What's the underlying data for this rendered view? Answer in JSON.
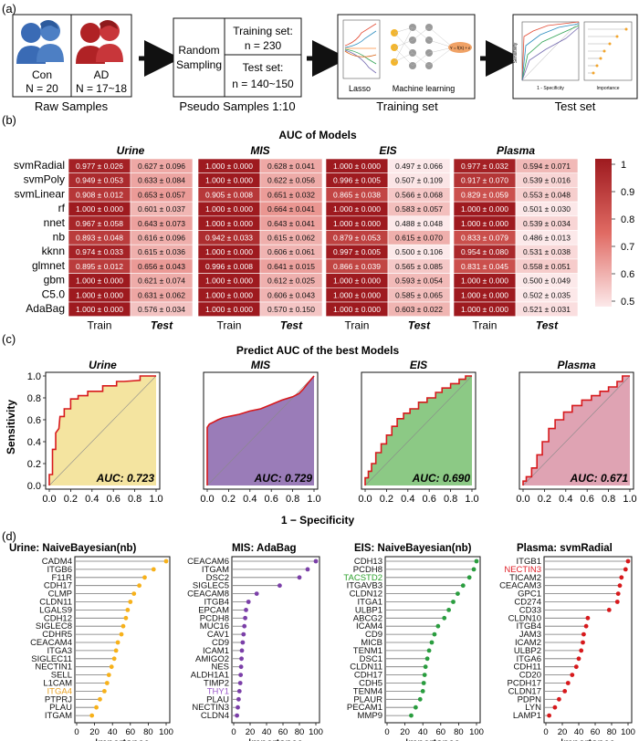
{
  "panels": {
    "a": "(a)",
    "b": "(b)",
    "c": "(c)",
    "d": "(d)"
  },
  "workflow": {
    "con_label": "Con",
    "con_n": "N = 20",
    "ad_label": "AD",
    "ad_n": "N = 17~18",
    "raw_caption": "Raw Samples",
    "random_line1": "Random",
    "random_line2": "Sampling",
    "train_line1": "Training set:",
    "train_line2": "n = 230",
    "test_line1": "Test set:",
    "test_line2": "n = 140~150",
    "pseudo_caption": "Pseudo Samples 1:10",
    "lasso_label": "Lasso",
    "ml_label": "Machine learning",
    "formula": "Y = f(X) + ε",
    "training_caption": "Training set",
    "test_caption": "Test set",
    "mini_plot_xlabel": "1 - Specificity",
    "mini_plot_ylabel": "Sensitivity",
    "mini_plot2_xlabel": "Importance"
  },
  "heatmap": {
    "title": "AUC of Models",
    "models": [
      "svmRadial",
      "svmPoly",
      "svmLinear",
      "rf",
      "nnet",
      "nb",
      "kknn",
      "glmnet",
      "gbm",
      "C5.0",
      "AdaBag"
    ],
    "col_train": "Train",
    "col_test": "Test",
    "legend_ticks": [
      "1",
      "0.9",
      "0.8",
      "0.7",
      "0.6",
      "0.5"
    ],
    "legend_colors": {
      "high": "#9e1a1f",
      "low": "#fce9ea"
    },
    "groups": [
      {
        "name": "Urine",
        "train": [
          "0.977 ± 0.026",
          "0.949 ± 0.053",
          "0.908 ± 0.012",
          "1.000 ± 0.000",
          "0.967 ± 0.058",
          "0.893 ± 0.048",
          "0.974 ± 0.033",
          "0.895 ± 0.012",
          "1.000 ± 0.000",
          "1.000 ± 0.000",
          "1.000 ± 0.000"
        ],
        "test": [
          "0.627 ± 0.096",
          "0.633 ± 0.084",
          "0.653 ± 0.057",
          "0.601 ± 0.037",
          "0.643 ± 0.073",
          "0.616 ± 0.096",
          "0.615 ± 0.036",
          "0.656 ± 0.043",
          "0.621 ± 0.074",
          "0.631 ± 0.062",
          "0.576 ± 0.034"
        ]
      },
      {
        "name": "MIS",
        "train": [
          "1.000 ± 0.000",
          "1.000 ± 0.000",
          "0.905 ± 0.008",
          "1.000 ± 0.000",
          "1.000 ± 0.000",
          "0.942 ± 0.033",
          "1.000 ± 0.000",
          "0.996 ± 0.008",
          "1.000 ± 0.000",
          "1.000 ± 0.000",
          "1.000 ± 0.000"
        ],
        "test": [
          "0.628 ± 0.041",
          "0.622 ± 0.056",
          "0.651 ± 0.032",
          "0.664 ± 0.041",
          "0.643 ± 0.041",
          "0.615 ± 0.062",
          "0.606 ± 0.061",
          "0.641 ± 0.015",
          "0.612 ± 0.025",
          "0.606 ± 0.043",
          "0.570 ± 0.150"
        ]
      },
      {
        "name": "EIS",
        "train": [
          "1.000 ± 0.000",
          "0.996 ± 0.005",
          "0.865 ± 0.038",
          "1.000 ± 0.000",
          "1.000 ± 0.000",
          "0.879 ± 0.053",
          "0.997 ± 0.005",
          "0.866 ± 0.039",
          "1.000 ± 0.000",
          "1.000 ± 0.000",
          "1.000 ± 0.000"
        ],
        "test": [
          "0.497 ± 0.066",
          "0.507 ± 0.109",
          "0.566 ± 0.068",
          "0.583 ± 0.057",
          "0.488 ± 0.048",
          "0.615 ± 0.070",
          "0.500 ± 0.106",
          "0.565 ± 0.085",
          "0.593 ± 0.054",
          "0.585 ± 0.065",
          "0.603 ± 0.022"
        ]
      },
      {
        "name": "Plasma",
        "train": [
          "0.977 ± 0.032",
          "0.917 ± 0.070",
          "0.829 ± 0.059",
          "1.000 ± 0.000",
          "1.000 ± 0.000",
          "0.833 ± 0.079",
          "0.954 ± 0.080",
          "0.831 ± 0.045",
          "1.000 ± 0.000",
          "1.000 ± 0.000",
          "1.000 ± 0.000"
        ],
        "test": [
          "0.594 ± 0.071",
          "0.539 ± 0.016",
          "0.553 ± 0.048",
          "0.501 ± 0.030",
          "0.539 ± 0.034",
          "0.486 ± 0.013",
          "0.531 ± 0.038",
          "0.558 ± 0.051",
          "0.500 ± 0.049",
          "0.502 ± 0.035",
          "0.521 ± 0.031"
        ]
      }
    ]
  },
  "roc": {
    "title": "Predict AUC of the best Models",
    "ylabel": "Sensitivity",
    "xlabel": "1 − Specificity",
    "ticks": [
      "0.0",
      "0.2",
      "0.4",
      "0.6",
      "0.8",
      "1.0"
    ],
    "line_color": "#d7191c",
    "plots": [
      {
        "name": "Urine",
        "auc": "AUC: 0.723",
        "fill": "#f4e4a0"
      },
      {
        "name": "MIS",
        "auc": "AUC: 0.729",
        "fill": "#9a7cb8"
      },
      {
        "name": "EIS",
        "auc": "AUC: 0.690",
        "fill": "#8cc985"
      },
      {
        "name": "Plasma",
        "auc": "AUC: 0.671",
        "fill": "#dfa3b3"
      }
    ]
  },
  "chart_data": [
    {
      "type": "line",
      "title": "Urine",
      "xlabel": "1 − Specificity",
      "ylabel": "Sensitivity",
      "xlim": [
        0,
        1
      ],
      "ylim": [
        0,
        1
      ],
      "annotation": "AUC: 0.723",
      "x": [
        0,
        0,
        0.03,
        0.03,
        0.06,
        0.06,
        0.09,
        0.1,
        0.14,
        0.14,
        0.2,
        0.2,
        0.27,
        0.27,
        0.36,
        0.36,
        0.5,
        0.5,
        0.63,
        0.63,
        0.7,
        0.85,
        0.85,
        1.0
      ],
      "y": [
        0,
        0.1,
        0.1,
        0.33,
        0.33,
        0.48,
        0.52,
        0.63,
        0.63,
        0.7,
        0.7,
        0.79,
        0.79,
        0.82,
        0.82,
        0.86,
        0.86,
        0.91,
        0.91,
        0.95,
        0.95,
        0.96,
        1.0,
        1.0
      ]
    },
    {
      "type": "line",
      "title": "MIS",
      "xlabel": "1 − Specificity",
      "ylabel": "Sensitivity",
      "xlim": [
        0,
        1
      ],
      "ylim": [
        0,
        1
      ],
      "annotation": "AUC: 0.729",
      "x": [
        0,
        0,
        0.02,
        0.06,
        0.1,
        0.15,
        0.2,
        0.3,
        0.4,
        0.5,
        0.6,
        0.7,
        0.8,
        0.86,
        0.9,
        0.94,
        1.0
      ],
      "y": [
        0,
        0.53,
        0.56,
        0.58,
        0.6,
        0.62,
        0.63,
        0.65,
        0.68,
        0.7,
        0.74,
        0.78,
        0.81,
        0.84,
        0.88,
        0.93,
        1.0
      ]
    },
    {
      "type": "line",
      "title": "EIS",
      "xlabel": "1 − Specificity",
      "ylabel": "Sensitivity",
      "xlim": [
        0,
        1
      ],
      "ylim": [
        0,
        1
      ],
      "annotation": "AUC: 0.690",
      "x": [
        0,
        0,
        0.03,
        0.03,
        0.06,
        0.06,
        0.1,
        0.1,
        0.15,
        0.15,
        0.2,
        0.2,
        0.25,
        0.25,
        0.3,
        0.3,
        0.36,
        0.36,
        0.42,
        0.42,
        0.5,
        0.5,
        0.58,
        0.58,
        0.66,
        0.66,
        0.72,
        0.72,
        0.8,
        0.8,
        0.88,
        0.88,
        0.94,
        0.94,
        1.0
      ],
      "y": [
        0,
        0.07,
        0.07,
        0.13,
        0.13,
        0.2,
        0.2,
        0.3,
        0.3,
        0.38,
        0.38,
        0.46,
        0.46,
        0.54,
        0.54,
        0.61,
        0.61,
        0.66,
        0.66,
        0.7,
        0.7,
        0.76,
        0.76,
        0.8,
        0.8,
        0.85,
        0.85,
        0.89,
        0.89,
        0.93,
        0.93,
        0.97,
        0.97,
        1.0,
        1.0
      ]
    },
    {
      "type": "line",
      "title": "Plasma",
      "xlabel": "1 − Specificity",
      "ylabel": "Sensitivity",
      "xlim": [
        0,
        1
      ],
      "ylim": [
        0,
        1
      ],
      "annotation": "AUC: 0.671",
      "x": [
        0,
        0,
        0.03,
        0.03,
        0.08,
        0.08,
        0.13,
        0.13,
        0.18,
        0.18,
        0.24,
        0.24,
        0.3,
        0.3,
        0.38,
        0.38,
        0.46,
        0.46,
        0.55,
        0.55,
        0.64,
        0.64,
        0.72,
        0.72,
        0.8,
        0.8,
        0.88,
        0.88,
        0.93,
        0.93,
        1.0
      ],
      "y": [
        0,
        0.04,
        0.04,
        0.08,
        0.08,
        0.16,
        0.16,
        0.28,
        0.28,
        0.4,
        0.4,
        0.52,
        0.52,
        0.6,
        0.6,
        0.67,
        0.67,
        0.73,
        0.73,
        0.78,
        0.78,
        0.82,
        0.82,
        0.86,
        0.86,
        0.9,
        0.9,
        0.95,
        0.95,
        1.0,
        1.0
      ]
    },
    {
      "type": "scatter",
      "title": "Urine: NaiveBayesian(nb)",
      "xlabel": "Importance",
      "xlim": [
        0,
        100
      ],
      "categories": [
        "CADM4",
        "ITGB6",
        "F11R",
        "CDH17",
        "CLMP",
        "CLDN11",
        "LGALS9",
        "CDH12",
        "SIGLEC8",
        "CDHR5",
        "CEACAM4",
        "ITGA3",
        "SIGLEC11",
        "NECTIN1",
        "SELL",
        "L1CAM",
        "ITGA4",
        "PTPRJ",
        "PLAU",
        "ITGAM"
      ],
      "values": [
        100,
        86,
        76,
        70,
        64,
        60,
        57,
        55,
        52,
        50,
        46,
        44,
        42,
        39,
        36,
        34,
        31,
        26,
        22,
        17
      ],
      "highlight": "ITGA4",
      "color": "#f7b11a",
      "highlight_color": "#e8a020"
    },
    {
      "type": "scatter",
      "title": "MIS: AdaBag",
      "xlabel": "Importance",
      "xlim": [
        0,
        100
      ],
      "categories": [
        "CEACAM6",
        "ITGAM",
        "DSC2",
        "SIGLEC5",
        "CEACAM8",
        "ITGB4",
        "EPCAM",
        "PCDH8",
        "MUC16",
        "CAV1",
        "CD9",
        "ICAM1",
        "AMIGO2",
        "NES",
        "ALDH1A1",
        "TIMP2",
        "THY1",
        "PLAU",
        "NECTIN3",
        "CLDN4"
      ],
      "values": [
        100,
        90,
        80,
        56,
        28,
        18,
        15,
        14,
        13,
        12,
        11,
        10,
        9.5,
        9,
        8.5,
        8,
        7,
        6,
        5,
        4
      ],
      "highlight": "THY1",
      "color": "#7b3fa8",
      "highlight_color": "#9b59c9"
    },
    {
      "type": "scatter",
      "title": "EIS: NaiveBayesian(nb)",
      "xlabel": "Importance",
      "xlim": [
        0,
        100
      ],
      "categories": [
        "CDH13",
        "PCDH8",
        "TACSTD2",
        "ITGAVB3",
        "CLDN12",
        "ITGA1",
        "ULBP1",
        "ABCG2",
        "ICAM4",
        "CD9",
        "MICB",
        "TENM1",
        "DSC1",
        "CLDN11",
        "CDH17",
        "CDH5",
        "TENM4",
        "PLAUR",
        "PECAM1",
        "MMP9"
      ],
      "values": [
        100,
        97,
        92,
        85,
        79,
        74,
        69,
        64,
        57,
        53,
        50,
        47,
        45,
        43,
        42,
        41,
        40,
        37,
        32,
        27
      ],
      "highlight": "TACSTD2",
      "color": "#2a9d3f",
      "highlight_color": "#2ca02c"
    },
    {
      "type": "scatter",
      "title": "Plasma: svmRadial",
      "xlabel": "Importance",
      "xlim": [
        0,
        100
      ],
      "categories": [
        "ITGB1",
        "NECTIN3",
        "TICAM2",
        "CEACAM3",
        "GPC1",
        "CD274",
        "CD33",
        "CLDN10",
        "ITGB4",
        "JAM3",
        "ICAM2",
        "ULBP2",
        "ITGA6",
        "CDH11",
        "CD20",
        "PCDH17",
        "CLDN17",
        "PDPN",
        "LYN",
        "LAMP1"
      ],
      "values": [
        100,
        97,
        92,
        90,
        88,
        87,
        77,
        51,
        49,
        46,
        45,
        43,
        40,
        37,
        32,
        27,
        23,
        16,
        11,
        4
      ],
      "highlight": "NECTIN3",
      "color": "#d7191c",
      "highlight_color": "#e0212a"
    }
  ],
  "importance": {
    "xlabel": "Importance",
    "ticks": [
      "0",
      "20",
      "40",
      "60",
      "80",
      "100"
    ]
  }
}
